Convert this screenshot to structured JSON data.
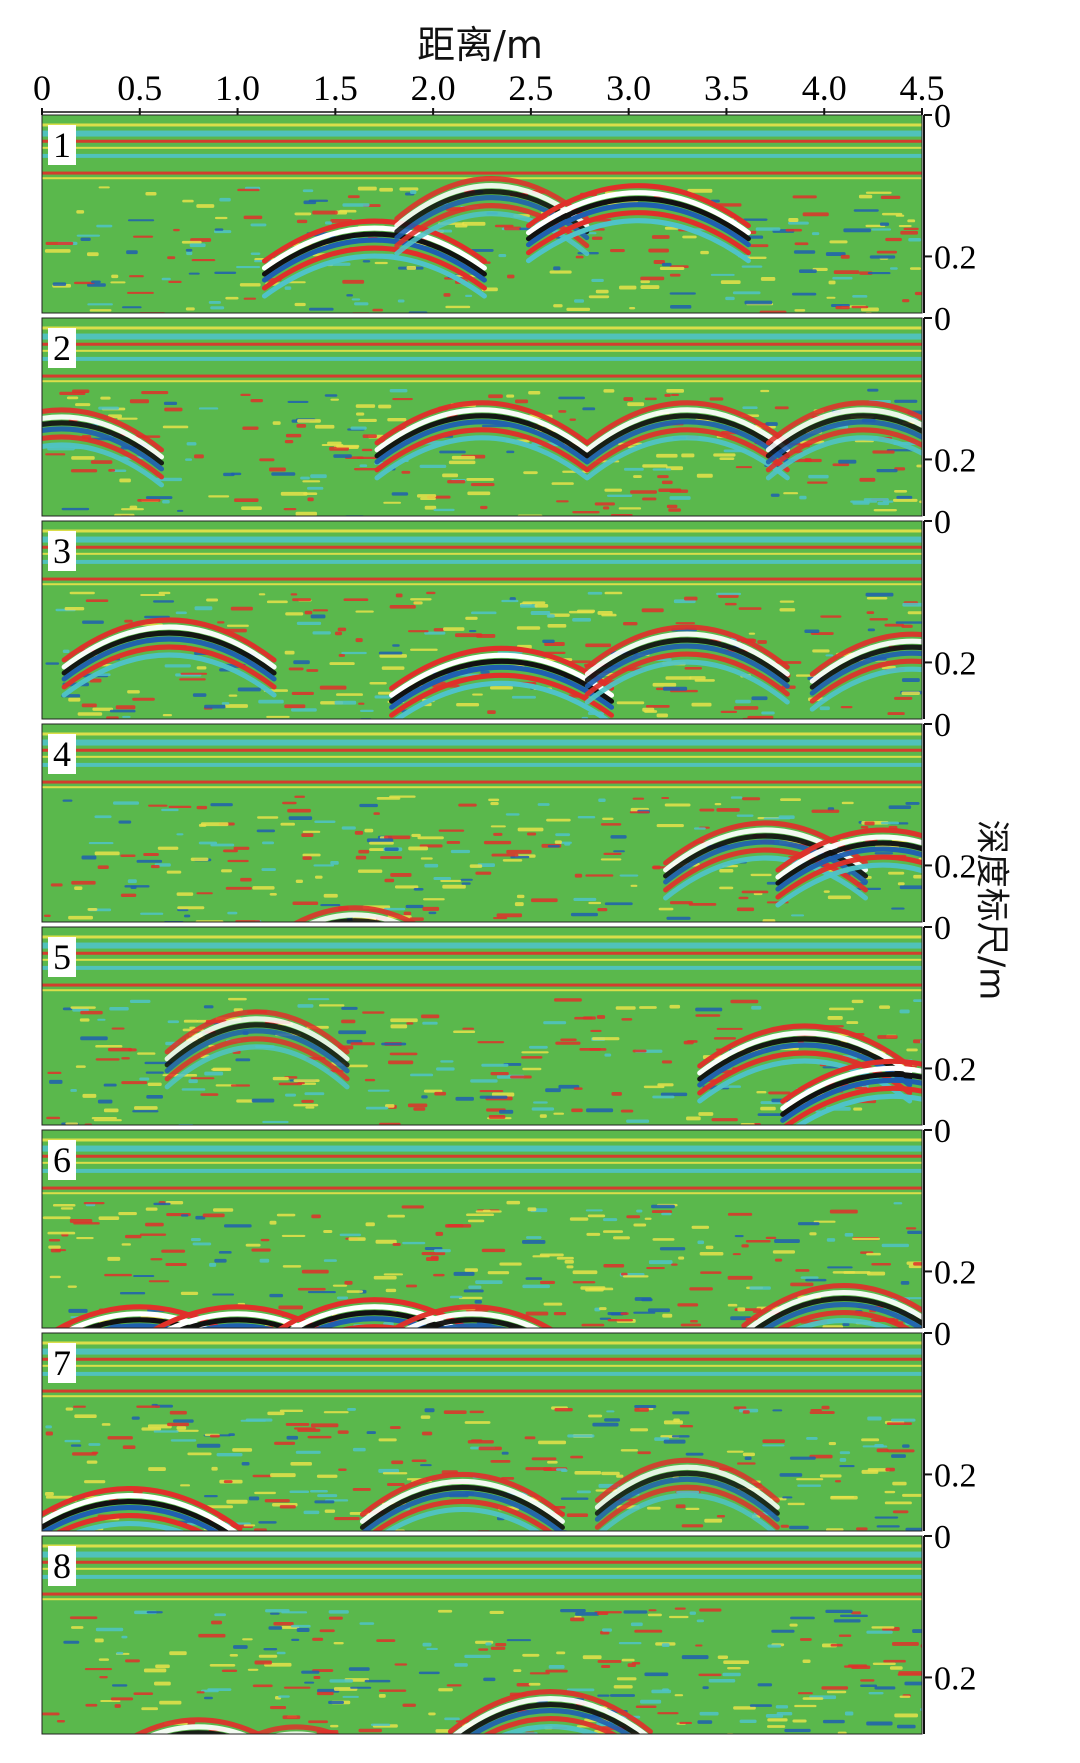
{
  "chart_data": {
    "type": "heatmap",
    "title": "",
    "xlabel": "距离/m",
    "ylabel": "深度标尺/m",
    "x_ticks": [
      "0",
      "0.5",
      "1.0",
      "1.5",
      "2.0",
      "2.5",
      "3.0",
      "3.5",
      "4.0",
      "4.5"
    ],
    "x_tick_values": [
      0,
      0.5,
      1.0,
      1.5,
      2.0,
      2.5,
      3.0,
      3.5,
      4.0,
      4.5
    ],
    "xlim": [
      0,
      4.5
    ],
    "y_ticks": [
      "0",
      "0.2"
    ],
    "y_tick_values": [
      0,
      0.2
    ],
    "ylim": [
      0,
      0.28
    ],
    "colors": {
      "background": "#5ab84c",
      "cyan": "#4fc3c8",
      "blue": "#1f5fb0",
      "red": "#e0302a",
      "yellow": "#e8e24a",
      "white": "#ffffff",
      "black": "#111111"
    },
    "panels": [
      {
        "label": "1",
        "hyperbolas": [
          {
            "x": 1.7,
            "depth": 0.15,
            "strength": 1.0
          },
          {
            "x": 2.3,
            "depth": 0.09,
            "strength": 0.7
          },
          {
            "x": 3.05,
            "depth": 0.1,
            "strength": 1.0
          }
        ]
      },
      {
        "label": "2",
        "hyperbolas": [
          {
            "x": 0.1,
            "depth": 0.13,
            "strength": 0.8
          },
          {
            "x": 2.25,
            "depth": 0.12,
            "strength": 0.9
          },
          {
            "x": 3.3,
            "depth": 0.12,
            "strength": 0.8
          },
          {
            "x": 4.2,
            "depth": 0.12,
            "strength": 0.7
          }
        ]
      },
      {
        "label": "3",
        "hyperbolas": [
          {
            "x": 0.65,
            "depth": 0.14,
            "strength": 0.9
          },
          {
            "x": 2.35,
            "depth": 0.18,
            "strength": 1.0
          },
          {
            "x": 3.3,
            "depth": 0.15,
            "strength": 0.8
          },
          {
            "x": 4.45,
            "depth": 0.16,
            "strength": 0.8
          }
        ]
      },
      {
        "label": "4",
        "hyperbolas": [
          {
            "x": 1.6,
            "depth": 0.26,
            "strength": 0.7
          },
          {
            "x": 3.7,
            "depth": 0.14,
            "strength": 0.8
          },
          {
            "x": 4.3,
            "depth": 0.15,
            "strength": 0.9
          }
        ]
      },
      {
        "label": "5",
        "hyperbolas": [
          {
            "x": 1.1,
            "depth": 0.12,
            "strength": 0.6
          },
          {
            "x": 3.9,
            "depth": 0.14,
            "strength": 0.9
          },
          {
            "x": 4.35,
            "depth": 0.19,
            "strength": 1.0
          }
        ]
      },
      {
        "label": "6",
        "hyperbolas": [
          {
            "x": 0.5,
            "depth": 0.25,
            "strength": 1.0
          },
          {
            "x": 1.0,
            "depth": 0.25,
            "strength": 1.0
          },
          {
            "x": 1.7,
            "depth": 0.24,
            "strength": 1.0
          },
          {
            "x": 2.2,
            "depth": 0.25,
            "strength": 0.9
          },
          {
            "x": 4.1,
            "depth": 0.22,
            "strength": 0.8
          }
        ]
      },
      {
        "label": "7",
        "hyperbolas": [
          {
            "x": 0.45,
            "depth": 0.22,
            "strength": 1.0
          },
          {
            "x": 2.15,
            "depth": 0.2,
            "strength": 0.8
          },
          {
            "x": 3.3,
            "depth": 0.18,
            "strength": 0.6
          }
        ]
      },
      {
        "label": "8",
        "hyperbolas": [
          {
            "x": 0.8,
            "depth": 0.26,
            "strength": 0.8
          },
          {
            "x": 2.6,
            "depth": 0.22,
            "strength": 0.8
          },
          {
            "x": 1.3,
            "depth": 0.27,
            "strength": 0.6
          }
        ]
      }
    ]
  }
}
